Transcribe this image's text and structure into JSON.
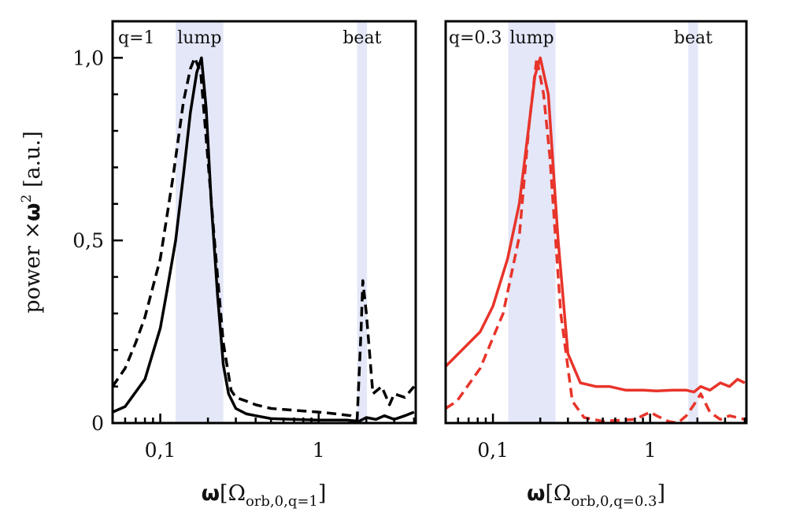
{
  "chart_data": [
    {
      "type": "line",
      "panel_label": "q=1",
      "xscale": "log",
      "xlim": [
        0.05,
        4.1
      ],
      "ylim": [
        0,
        1.1
      ],
      "xticks": [
        {
          "value": 0.1,
          "label": "0,1"
        },
        {
          "value": 1,
          "label": "1"
        }
      ],
      "yticks": [
        {
          "value": 0,
          "label": "0"
        },
        {
          "value": 0.5,
          "label": "0,5"
        },
        {
          "value": 1.0,
          "label": "1,0"
        }
      ],
      "ylabel": {
        "prefix": "power ×",
        "symbol": "ω",
        "sup": "2",
        "unit": " [a.u.]"
      },
      "xlabel": {
        "symbol": "ω",
        "open": "[Ω",
        "sub": "orb,0,q=1",
        "close": "]"
      },
      "bands": [
        {
          "label": "lump",
          "range": [
            0.125,
            0.25
          ]
        },
        {
          "label": "beat",
          "range": [
            1.75,
            2.02
          ]
        }
      ],
      "band_color": "#e3e7f8",
      "series": [
        {
          "style": "solid",
          "color": "#000000",
          "x": [
            0.05,
            0.06,
            0.08,
            0.1,
            0.11,
            0.125,
            0.14,
            0.155,
            0.17,
            0.182,
            0.195,
            0.21,
            0.23,
            0.25,
            0.27,
            0.3,
            0.35,
            0.4,
            0.5,
            0.7,
            1,
            1.5,
            1.8,
            2,
            2.3,
            2.6,
            3,
            3.5,
            4
          ],
          "y": [
            0.03,
            0.045,
            0.12,
            0.26,
            0.36,
            0.5,
            0.68,
            0.85,
            0.96,
            1.0,
            0.86,
            0.6,
            0.35,
            0.16,
            0.08,
            0.04,
            0.025,
            0.02,
            0.012,
            0.01,
            0.008,
            0.008,
            0.005,
            0.015,
            0.01,
            0.02,
            0.01,
            0.02,
            0.03
          ]
        },
        {
          "style": "dashed",
          "color": "#000000",
          "x": [
            0.05,
            0.06,
            0.07,
            0.08,
            0.1,
            0.12,
            0.14,
            0.155,
            0.165,
            0.18,
            0.2,
            0.22,
            0.25,
            0.28,
            0.3,
            0.35,
            0.4,
            0.5,
            0.7,
            1,
            1.3,
            1.6,
            1.75,
            1.85,
            1.9,
            2,
            2.2,
            2.5,
            2.8,
            3,
            3.5,
            4
          ],
          "y": [
            0.1,
            0.15,
            0.22,
            0.29,
            0.45,
            0.67,
            0.88,
            0.97,
            1.0,
            0.96,
            0.72,
            0.5,
            0.22,
            0.09,
            0.07,
            0.06,
            0.05,
            0.04,
            0.035,
            0.03,
            0.025,
            0.02,
            0.01,
            0.25,
            0.39,
            0.3,
            0.08,
            0.1,
            0.05,
            0.08,
            0.07,
            0.1
          ]
        }
      ]
    },
    {
      "type": "line",
      "panel_label": "q=0.3",
      "xscale": "log",
      "xlim": [
        0.05,
        4.1
      ],
      "ylim": [
        0,
        1.1
      ],
      "xticks": [
        {
          "value": 0.1,
          "label": "0,1"
        },
        {
          "value": 1,
          "label": "1"
        }
      ],
      "xlabel": {
        "symbol": "ω",
        "open": "[Ω",
        "sub": "orb,0,q=0.3",
        "close": "]"
      },
      "bands": [
        {
          "label": "lump",
          "range": [
            0.125,
            0.25
          ]
        },
        {
          "label": "beat",
          "range": [
            1.75,
            2.02
          ]
        }
      ],
      "band_color": "#e3e7f8",
      "series": [
        {
          "style": "solid",
          "color": "#e8342a",
          "x": [
            0.05,
            0.083,
            0.1,
            0.124,
            0.147,
            0.17,
            0.185,
            0.2,
            0.225,
            0.26,
            0.3,
            0.36,
            0.45,
            0.55,
            0.7,
            0.9,
            1.1,
            1.4,
            1.7,
            1.9,
            2.1,
            2.4,
            2.8,
            3.2,
            3.6,
            4
          ],
          "y": [
            0.155,
            0.25,
            0.32,
            0.45,
            0.6,
            0.82,
            0.95,
            1.0,
            0.9,
            0.5,
            0.19,
            0.11,
            0.1,
            0.1,
            0.09,
            0.09,
            0.088,
            0.09,
            0.09,
            0.085,
            0.1,
            0.09,
            0.11,
            0.1,
            0.12,
            0.11
          ]
        },
        {
          "style": "dashed",
          "color": "#e8342a",
          "x": [
            0.05,
            0.059,
            0.083,
            0.116,
            0.147,
            0.17,
            0.19,
            0.21,
            0.23,
            0.27,
            0.32,
            0.38,
            0.5,
            0.8,
            1.0,
            1.1,
            1.3,
            1.5,
            1.7,
            1.9,
            2.1,
            2.4,
            2.8,
            3.2,
            4
          ],
          "y": [
            0.04,
            0.06,
            0.15,
            0.3,
            0.51,
            0.82,
            1.0,
            0.9,
            0.73,
            0.3,
            0.06,
            0.015,
            0.005,
            0.01,
            0.03,
            0.02,
            0.005,
            0.0,
            0.02,
            0.05,
            0.08,
            0.03,
            0.01,
            0.02,
            0.01
          ]
        }
      ]
    }
  ]
}
